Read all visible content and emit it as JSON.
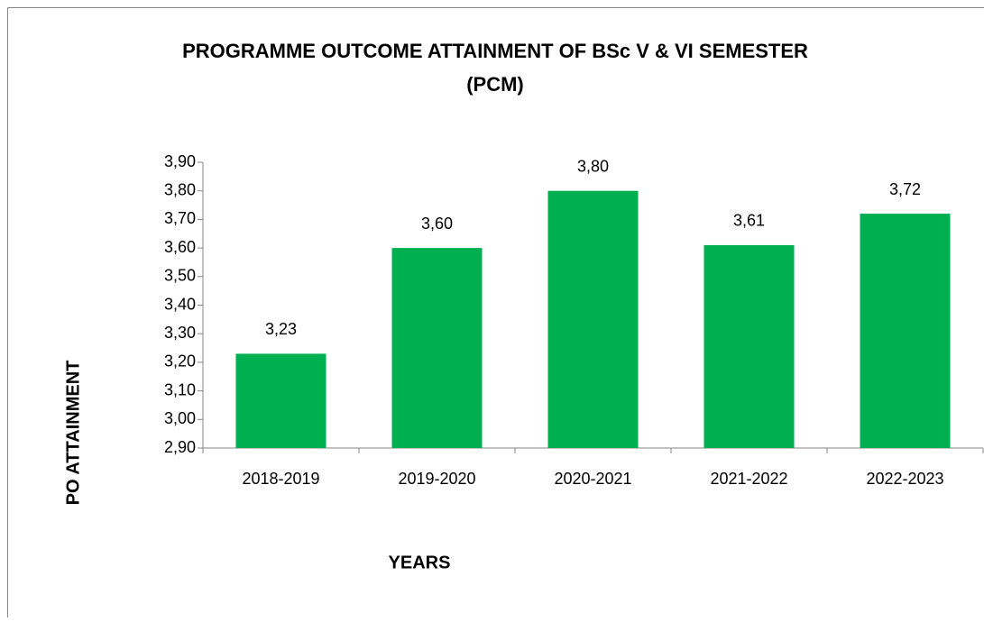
{
  "chart_data": {
    "type": "bar",
    "title": [
      "PROGRAMME OUTCOME ATTAINMENT OF BSc V & VI SEMESTER",
      "(PCM)"
    ],
    "x_label": "YEARS",
    "y_label": "PO ATTAINMENT",
    "categories": [
      "2018-2019",
      "2019-2020",
      "2020-2021",
      "2021-2022",
      "2022-2023"
    ],
    "values": [
      3.23,
      3.6,
      3.8,
      3.61,
      3.72
    ],
    "value_labels": [
      "3,23",
      "3,60",
      "3,80",
      "3,61",
      "3,72"
    ],
    "color": "#00b050",
    "ylim": [
      2.9,
      3.9
    ],
    "yticks": [
      {
        "value": 2.9,
        "label": "2,90"
      },
      {
        "value": 3.0,
        "label": "3,00"
      },
      {
        "value": 3.1,
        "label": "3,10"
      },
      {
        "value": 3.2,
        "label": "3,20"
      },
      {
        "value": 3.3,
        "label": "3,30"
      },
      {
        "value": 3.4,
        "label": "3,40"
      },
      {
        "value": 3.5,
        "label": "3,50"
      },
      {
        "value": 3.6,
        "label": "3,60"
      },
      {
        "value": 3.7,
        "label": "3,70"
      },
      {
        "value": 3.8,
        "label": "3,80"
      },
      {
        "value": 3.9,
        "label": "3,90"
      }
    ],
    "grid": false
  }
}
